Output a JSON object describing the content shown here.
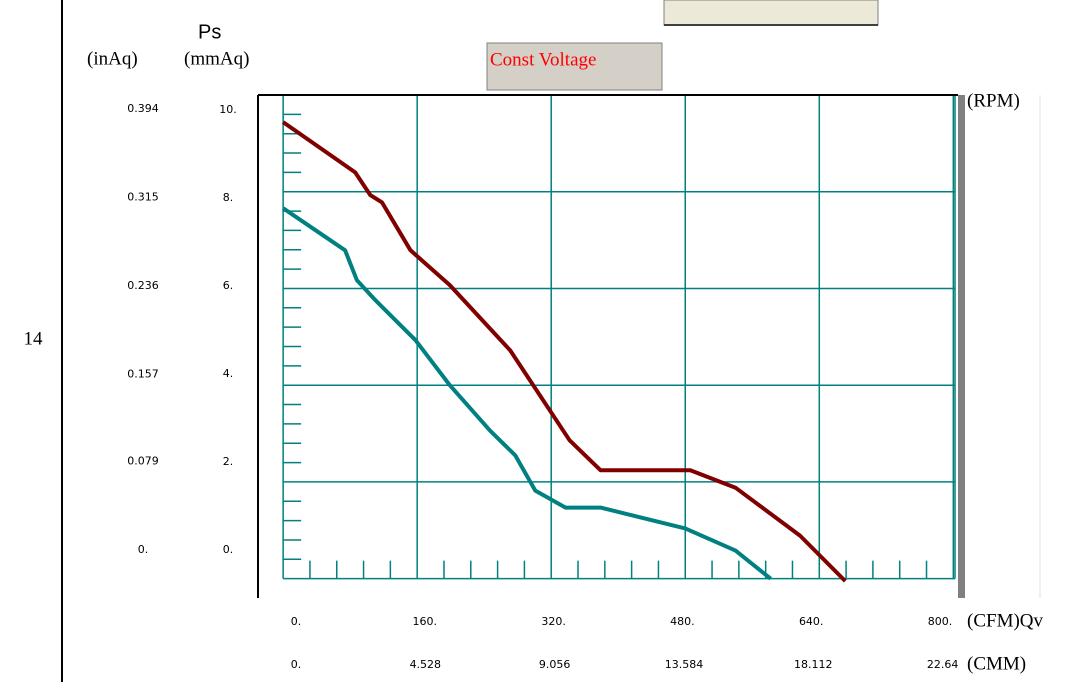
{
  "chart_data": {
    "type": "line",
    "page_number": "14",
    "y_label": "Ps",
    "y_unit": "(mmAq)",
    "y2_unit": "(inAq)",
    "x_unit": "(CFM)Qv",
    "x2_unit": "(CMM)",
    "rpm_label": "(RPM)",
    "mode_button": "Const Voltage",
    "xlim": [
      -30,
      802
    ],
    "ylim": [
      -0.4,
      10
    ],
    "xticks": [
      {
        "value": 0,
        "label": "0."
      },
      {
        "value": 160,
        "label": "160."
      },
      {
        "value": 320,
        "label": "320."
      },
      {
        "value": 480,
        "label": "480."
      },
      {
        "value": 640,
        "label": "640."
      },
      {
        "value": 800,
        "label": "800."
      }
    ],
    "yticks": [
      {
        "value": 0,
        "label": "0."
      },
      {
        "value": 2,
        "label": "2."
      },
      {
        "value": 4,
        "label": "4."
      },
      {
        "value": 6,
        "label": "6."
      },
      {
        "value": 8,
        "label": "8."
      },
      {
        "value": 10,
        "label": "10."
      }
    ],
    "x2lim": [
      -0.849,
      22.7
    ],
    "x2ticks": [
      {
        "value": 0,
        "label": "0."
      },
      4.528,
      9.056,
      13.584,
      18.112,
      22.64
    ],
    "y2lim": [
      -0.0157,
      0.3937
    ],
    "y2ticks": [
      {
        "value": 0,
        "label": "0."
      },
      0.079,
      0.157,
      0.236,
      0.315,
      0.394
    ],
    "minor_xticks": [
      32,
      64,
      96,
      128,
      192,
      224,
      256,
      288,
      352,
      384,
      416,
      448,
      512,
      544,
      576,
      608,
      672,
      704,
      736,
      768
    ],
    "minor_yticks": [
      0.4,
      0.8,
      1.2,
      1.6,
      2.4,
      2.8,
      3.2,
      3.6,
      4.4,
      4.8,
      5.2,
      5.6,
      6.4,
      6.8,
      7.2,
      7.6,
      8.4,
      8.8,
      9.2,
      9.6
    ],
    "grid": true,
    "grid_color": "#008080",
    "series": [
      {
        "color": "#800000",
        "x": [
          0,
          86,
          104,
          118,
          152,
          199,
          271,
          342,
          379,
          486,
          540,
          617,
          671
        ],
        "values": [
          9.44,
          8.4,
          7.93,
          7.78,
          6.79,
          6.07,
          4.72,
          2.86,
          2.24,
          2.24,
          1.88,
          0.89,
          -0.05
        ]
      },
      {
        "color": "#008080",
        "x": [
          0,
          74,
          88,
          110,
          158,
          199,
          247,
          277,
          301,
          337,
          379,
          480,
          540,
          582
        ],
        "values": [
          7.66,
          6.79,
          6.17,
          5.76,
          4.93,
          4.0,
          3.06,
          2.55,
          1.82,
          1.47,
          1.47,
          1.04,
          0.58,
          0
        ]
      }
    ]
  }
}
